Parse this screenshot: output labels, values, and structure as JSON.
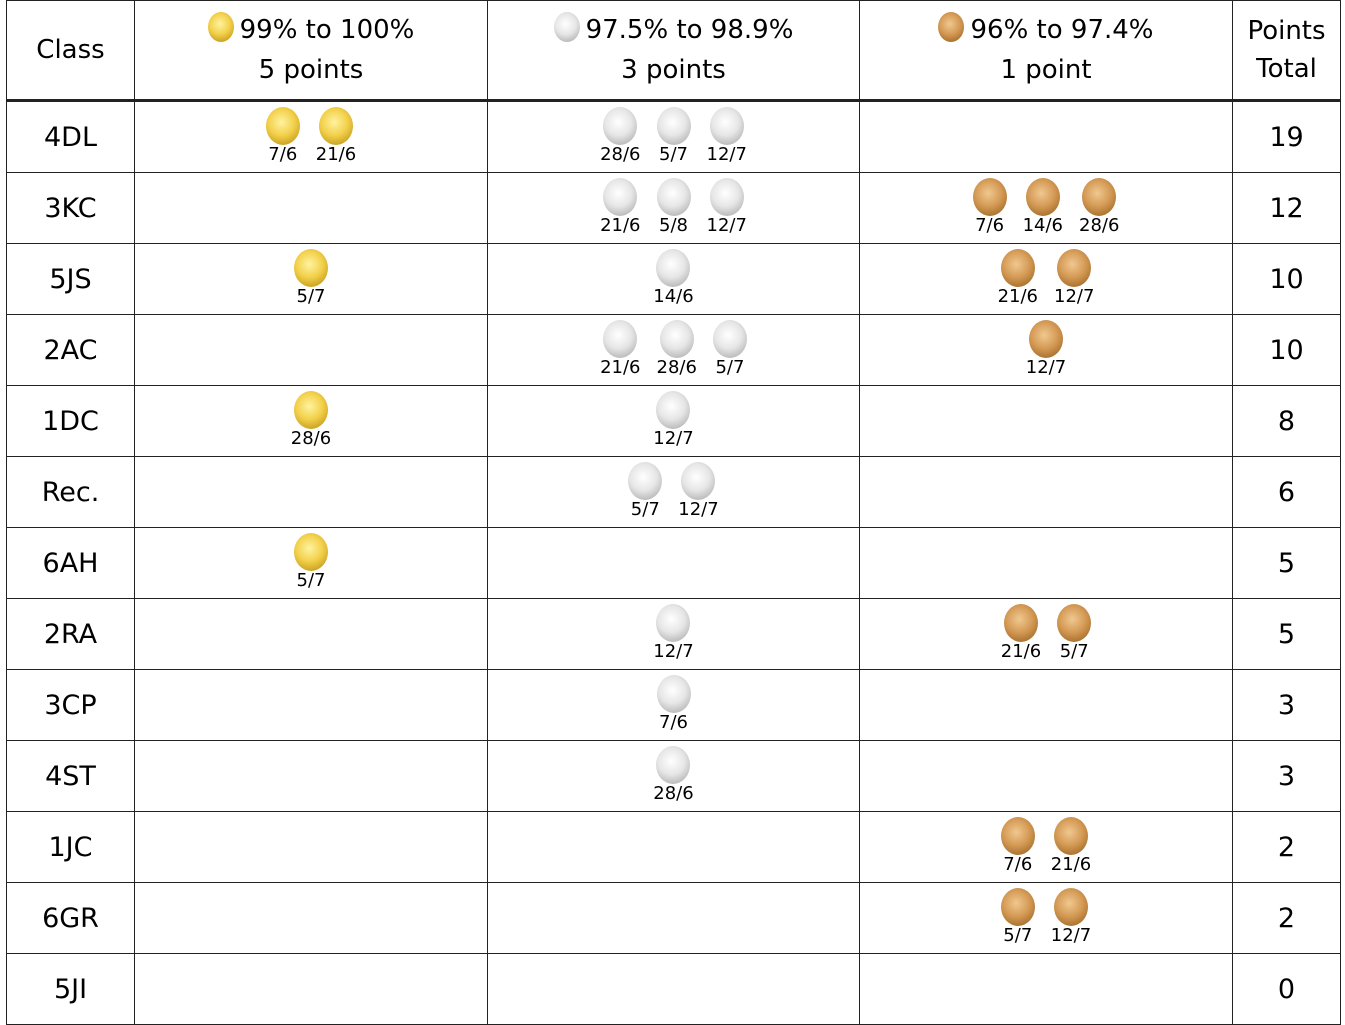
{
  "header": {
    "class": "Class",
    "gold": {
      "range": "99% to 100%",
      "points": "5 points"
    },
    "silver": {
      "range": "97.5% to 98.9%",
      "points": "3 points"
    },
    "bronze": {
      "range": "96% to 97.4%",
      "points": "1 point"
    },
    "total": [
      "Points",
      "Total"
    ]
  },
  "rows": [
    {
      "class": "4DL",
      "gold": [
        "7/6",
        "21/6"
      ],
      "silver": [
        "28/6",
        "5/7",
        "12/7"
      ],
      "bronze": [],
      "total": 19
    },
    {
      "class": "3KC",
      "gold": [],
      "silver": [
        "21/6",
        "5/8",
        "12/7"
      ],
      "bronze": [
        "7/6",
        "14/6",
        "28/6"
      ],
      "total": 12
    },
    {
      "class": "5JS",
      "gold": [
        "5/7"
      ],
      "silver": [
        "14/6"
      ],
      "bronze": [
        "21/6",
        "12/7"
      ],
      "total": 10
    },
    {
      "class": "2AC",
      "gold": [],
      "silver": [
        "21/6",
        "28/6",
        "5/7"
      ],
      "bronze": [
        "12/7"
      ],
      "total": 10
    },
    {
      "class": "1DC",
      "gold": [
        "28/6"
      ],
      "silver": [
        "12/7"
      ],
      "bronze": [],
      "total": 8
    },
    {
      "class": "Rec.",
      "gold": [],
      "silver": [
        "5/7",
        "12/7"
      ],
      "bronze": [],
      "total": 6
    },
    {
      "class": "6AH",
      "gold": [
        "5/7"
      ],
      "silver": [],
      "bronze": [],
      "total": 5
    },
    {
      "class": "2RA",
      "gold": [],
      "silver": [
        "12/7"
      ],
      "bronze": [
        "21/6",
        "5/7"
      ],
      "total": 5
    },
    {
      "class": "3CP",
      "gold": [],
      "silver": [
        "7/6"
      ],
      "bronze": [],
      "total": 3
    },
    {
      "class": "4ST",
      "gold": [],
      "silver": [
        "28/6"
      ],
      "bronze": [],
      "total": 3
    },
    {
      "class": "1JC",
      "gold": [],
      "silver": [],
      "bronze": [
        "7/6",
        "21/6"
      ],
      "total": 2
    },
    {
      "class": "6GR",
      "gold": [],
      "silver": [],
      "bronze": [
        "5/7",
        "12/7"
      ],
      "total": 2
    },
    {
      "class": "5JI",
      "gold": [],
      "silver": [],
      "bronze": [],
      "total": 0
    }
  ]
}
